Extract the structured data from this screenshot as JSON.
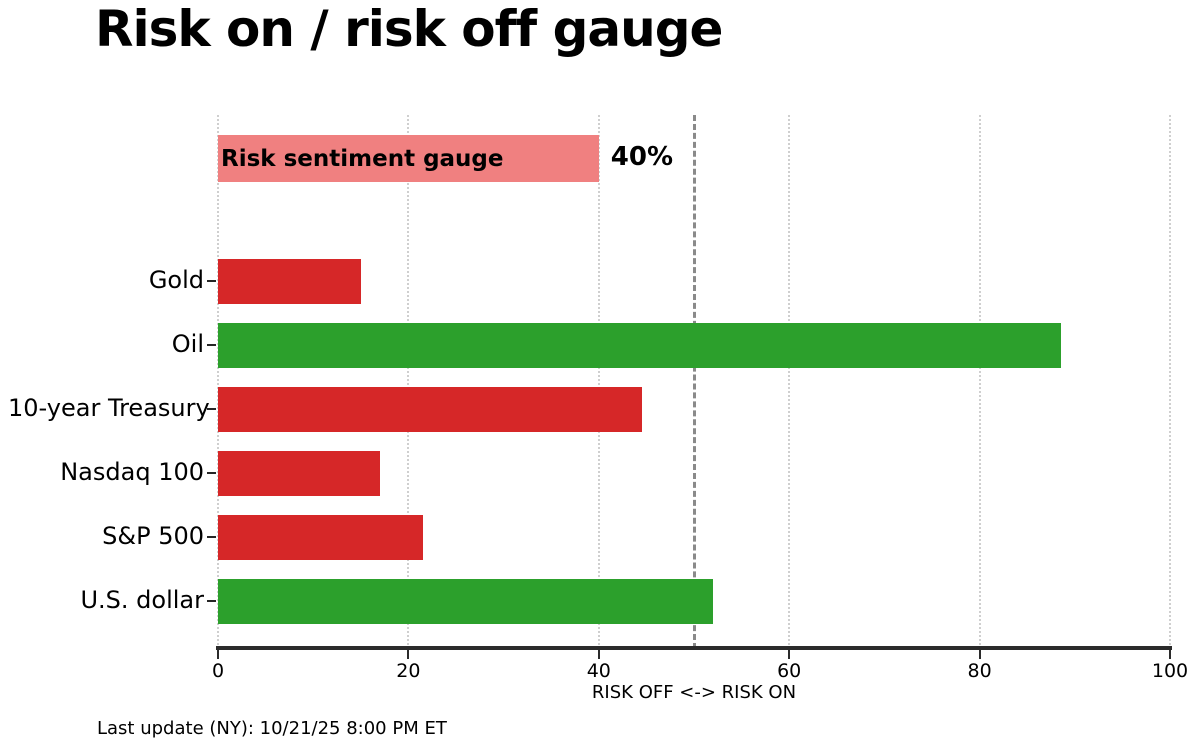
{
  "title": "Risk on / risk off gauge",
  "footer": "Last update (NY): 10/21/25 8:00 PM ET",
  "colors": {
    "risk_off_red": "#d62728",
    "risk_on_green": "#2ca02c",
    "gauge_pink": "#f08080",
    "threshold_gray": "#8a8a8a",
    "gridline_gray": "#cfcfcf",
    "axis_dark": "#2b2b2b"
  },
  "chart_data": {
    "type": "bar",
    "orientation": "horizontal",
    "title": "Risk on / risk off gauge",
    "xlabel": "RISK OFF <-> RISK ON",
    "xlim": [
      0,
      100
    ],
    "xticks": [
      0,
      20,
      40,
      60,
      80,
      100
    ],
    "grid": "vertical dotted gridlines at each x tick",
    "legend": "none",
    "threshold_line": {
      "x": 50,
      "style": "dashed"
    },
    "gauge": {
      "label": "Risk sentiment gauge",
      "value": 40,
      "value_label": "40%",
      "color_key": "gauge_pink"
    },
    "categories": [
      "Gold",
      "Oil",
      "10-year Treasury",
      "Nasdaq 100",
      "S&P 500",
      "U.S. dollar"
    ],
    "values": [
      15,
      88.5,
      44.5,
      17,
      21.5,
      52
    ],
    "bar_color_keys": [
      "risk_off_red",
      "risk_on_green",
      "risk_off_red",
      "risk_off_red",
      "risk_off_red",
      "risk_on_green"
    ]
  }
}
